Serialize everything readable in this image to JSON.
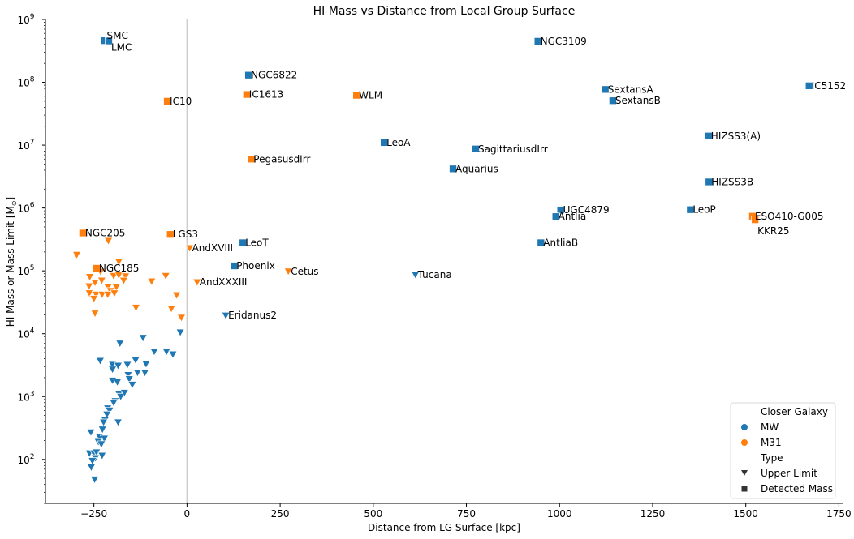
{
  "chart_data": {
    "type": "scatter",
    "title": "HI Mass vs Distance from Local Group Surface",
    "xlabel": "Distance from LG Surface [kpc]",
    "ylabel": "HI Mass or Mass Limit [M",
    "ylabel_sub": "⊙",
    "ylabel_end": "]",
    "xlim": [
      -380,
      1760
    ],
    "ylim": [
      20,
      1000000000
    ],
    "yscale": "log",
    "x_ticks": [
      -250,
      0,
      250,
      500,
      750,
      1000,
      1250,
      1500,
      1750
    ],
    "x_tick_labels": [
      "−250",
      "0",
      "250",
      "500",
      "750",
      "1000",
      "1250",
      "1500",
      "1750"
    ],
    "y_ticks": [
      100,
      1000,
      10000,
      100000,
      1000000,
      10000000,
      100000000,
      1000000000
    ],
    "y_tick_bases": [
      "10",
      "10",
      "10",
      "10",
      "10",
      "10",
      "10",
      "10"
    ],
    "y_tick_exps": [
      "2",
      "3",
      "4",
      "5",
      "6",
      "7",
      "8",
      "9"
    ],
    "vline_x": 0,
    "legend": {
      "position": "lower-right",
      "hue_title": "Closer Galaxy",
      "hue_items": [
        {
          "label": "MW",
          "color": "#1f77b4"
        },
        {
          "label": "M31",
          "color": "#ff7f0e"
        }
      ],
      "style_title": "Type",
      "style_items": [
        {
          "label": "Upper Limit",
          "marker": "triangle-down"
        },
        {
          "label": "Detected Mass",
          "marker": "square"
        }
      ]
    },
    "colors": {
      "MW": "#1f77b4",
      "M31": "#ff7f0e"
    },
    "detected": [
      {
        "name": "SMC",
        "x": -222,
        "y": 460000000,
        "g": "MW"
      },
      {
        "name": "LMC",
        "x": -210,
        "y": 455000000,
        "g": "MW"
      },
      {
        "name": "NGC3109",
        "x": 942,
        "y": 450000000,
        "g": "MW"
      },
      {
        "name": "NGC6822",
        "x": 165,
        "y": 130000000,
        "g": "MW"
      },
      {
        "name": "IC5152",
        "x": 1670,
        "y": 88000000,
        "g": "MW"
      },
      {
        "name": "SextansA",
        "x": 1123,
        "y": 77000000,
        "g": "MW"
      },
      {
        "name": "IC1613",
        "x": 160,
        "y": 64000000,
        "g": "M31"
      },
      {
        "name": "WLM",
        "x": 455,
        "y": 62000000,
        "g": "M31"
      },
      {
        "name": "SextansB",
        "x": 1143,
        "y": 51000000,
        "g": "MW"
      },
      {
        "name": "IC10",
        "x": -53,
        "y": 50000000,
        "g": "M31"
      },
      {
        "name": "HIZSS3(A)",
        "x": 1400,
        "y": 14000000,
        "g": "MW"
      },
      {
        "name": "LeoA",
        "x": 529,
        "y": 11000000,
        "g": "MW"
      },
      {
        "name": "SagittariusdIrr",
        "x": 775,
        "y": 8700000,
        "g": "MW"
      },
      {
        "name": "PegasusdIrr",
        "x": 172,
        "y": 6000000,
        "g": "M31"
      },
      {
        "name": "Aquarius",
        "x": 714,
        "y": 4200000,
        "g": "MW"
      },
      {
        "name": "HIZSS3B",
        "x": 1401,
        "y": 2600000,
        "g": "MW"
      },
      {
        "name": "UGC4879",
        "x": 1003,
        "y": 930000,
        "g": "MW"
      },
      {
        "name": "LeoP",
        "x": 1351,
        "y": 940000,
        "g": "MW"
      },
      {
        "name": "Antlia",
        "x": 990,
        "y": 730000,
        "g": "MW"
      },
      {
        "name": "ESO410-G005",
        "x": 1518,
        "y": 740000,
        "g": "M31"
      },
      {
        "name": "KKR25",
        "x": 1525,
        "y": 650000,
        "g": "M31"
      },
      {
        "name": "NGC205",
        "x": -280,
        "y": 400000,
        "g": "M31"
      },
      {
        "name": "LGS3",
        "x": -45,
        "y": 380000,
        "g": "M31"
      },
      {
        "name": "LeoT",
        "x": 150,
        "y": 280000,
        "g": "MW"
      },
      {
        "name": "AntliaB",
        "x": 950,
        "y": 280000,
        "g": "MW"
      },
      {
        "name": "Phoenix",
        "x": 126,
        "y": 120000,
        "g": "MW"
      },
      {
        "name": "NGC185",
        "x": -243,
        "y": 110000,
        "g": "M31"
      }
    ],
    "upper_limits": [
      {
        "name": "AndXVIII",
        "x": 7,
        "y": 230000,
        "g": "M31"
      },
      {
        "name": "Cetus",
        "x": 272,
        "y": 98000,
        "g": "M31"
      },
      {
        "name": "Tucana",
        "x": 613,
        "y": 87000,
        "g": "MW"
      },
      {
        "name": "AndXXXIII",
        "x": 27,
        "y": 66000,
        "g": "M31"
      },
      {
        "name": "Eridanus2",
        "x": 104,
        "y": 19500,
        "g": "MW"
      },
      {
        "name": "",
        "x": -211,
        "y": 300000,
        "g": "M31"
      },
      {
        "name": "",
        "x": -296,
        "y": 180000,
        "g": "M31"
      },
      {
        "name": "",
        "x": -183,
        "y": 140000,
        "g": "M31"
      },
      {
        "name": "",
        "x": -232,
        "y": 97000,
        "g": "M31"
      },
      {
        "name": "",
        "x": -261,
        "y": 80000,
        "g": "M31"
      },
      {
        "name": "",
        "x": -197,
        "y": 83000,
        "g": "M31"
      },
      {
        "name": "",
        "x": -183,
        "y": 85000,
        "g": "M31"
      },
      {
        "name": "",
        "x": -165,
        "y": 82000,
        "g": "M31"
      },
      {
        "name": "",
        "x": -57,
        "y": 83000,
        "g": "M31"
      },
      {
        "name": "",
        "x": -229,
        "y": 70000,
        "g": "M31"
      },
      {
        "name": "",
        "x": -247,
        "y": 65000,
        "g": "M31"
      },
      {
        "name": "",
        "x": -170,
        "y": 70000,
        "g": "M31"
      },
      {
        "name": "",
        "x": -95,
        "y": 68000,
        "g": "M31"
      },
      {
        "name": "",
        "x": -263,
        "y": 57000,
        "g": "M31"
      },
      {
        "name": "",
        "x": -212,
        "y": 55000,
        "g": "M31"
      },
      {
        "name": "",
        "x": -190,
        "y": 55000,
        "g": "M31"
      },
      {
        "name": "",
        "x": -205,
        "y": 48000,
        "g": "M31"
      },
      {
        "name": "",
        "x": -262,
        "y": 44000,
        "g": "M31"
      },
      {
        "name": "",
        "x": -244,
        "y": 42000,
        "g": "M31"
      },
      {
        "name": "",
        "x": -228,
        "y": 42000,
        "g": "M31"
      },
      {
        "name": "",
        "x": -213,
        "y": 42000,
        "g": "M31"
      },
      {
        "name": "",
        "x": -195,
        "y": 44000,
        "g": "M31"
      },
      {
        "name": "",
        "x": -28,
        "y": 41000,
        "g": "M31"
      },
      {
        "name": "",
        "x": -250,
        "y": 36000,
        "g": "M31"
      },
      {
        "name": "",
        "x": -137,
        "y": 26000,
        "g": "M31"
      },
      {
        "name": "",
        "x": -42,
        "y": 25000,
        "g": "M31"
      },
      {
        "name": "",
        "x": -247,
        "y": 21000,
        "g": "M31"
      },
      {
        "name": "",
        "x": -15,
        "y": 18000,
        "g": "M31"
      },
      {
        "name": "",
        "x": -18,
        "y": 10500,
        "g": "MW"
      },
      {
        "name": "",
        "x": -118,
        "y": 8600,
        "g": "MW"
      },
      {
        "name": "",
        "x": -180,
        "y": 7000,
        "g": "MW"
      },
      {
        "name": "",
        "x": -88,
        "y": 5200,
        "g": "MW"
      },
      {
        "name": "",
        "x": -55,
        "y": 5200,
        "g": "MW"
      },
      {
        "name": "",
        "x": -38,
        "y": 4700,
        "g": "MW"
      },
      {
        "name": "",
        "x": -233,
        "y": 3700,
        "g": "MW"
      },
      {
        "name": "",
        "x": -138,
        "y": 3800,
        "g": "MW"
      },
      {
        "name": "",
        "x": -200,
        "y": 3200,
        "g": "MW"
      },
      {
        "name": "",
        "x": -185,
        "y": 3100,
        "g": "MW"
      },
      {
        "name": "",
        "x": -160,
        "y": 3200,
        "g": "MW"
      },
      {
        "name": "",
        "x": -110,
        "y": 3300,
        "g": "MW"
      },
      {
        "name": "",
        "x": -200,
        "y": 2700,
        "g": "MW"
      },
      {
        "name": "",
        "x": -158,
        "y": 2200,
        "g": "MW"
      },
      {
        "name": "",
        "x": -133,
        "y": 2400,
        "g": "MW"
      },
      {
        "name": "",
        "x": -113,
        "y": 2400,
        "g": "MW"
      },
      {
        "name": "",
        "x": -155,
        "y": 1900,
        "g": "MW"
      },
      {
        "name": "",
        "x": -200,
        "y": 1800,
        "g": "MW"
      },
      {
        "name": "",
        "x": -187,
        "y": 1700,
        "g": "MW"
      },
      {
        "name": "",
        "x": -147,
        "y": 1550,
        "g": "MW"
      },
      {
        "name": "",
        "x": -183,
        "y": 1100,
        "g": "MW"
      },
      {
        "name": "",
        "x": -178,
        "y": 1000,
        "g": "MW"
      },
      {
        "name": "",
        "x": -168,
        "y": 1150,
        "g": "MW"
      },
      {
        "name": "",
        "x": -193,
        "y": 850,
        "g": "MW"
      },
      {
        "name": "",
        "x": -197,
        "y": 800,
        "g": "MW"
      },
      {
        "name": "",
        "x": -213,
        "y": 650,
        "g": "MW"
      },
      {
        "name": "",
        "x": -208,
        "y": 600,
        "g": "MW"
      },
      {
        "name": "",
        "x": -215,
        "y": 520,
        "g": "MW"
      },
      {
        "name": "",
        "x": -220,
        "y": 420,
        "g": "MW"
      },
      {
        "name": "",
        "x": -224,
        "y": 390,
        "g": "MW"
      },
      {
        "name": "",
        "x": -185,
        "y": 390,
        "g": "MW"
      },
      {
        "name": "",
        "x": -227,
        "y": 300,
        "g": "MW"
      },
      {
        "name": "",
        "x": -258,
        "y": 270,
        "g": "MW"
      },
      {
        "name": "",
        "x": -235,
        "y": 230,
        "g": "MW"
      },
      {
        "name": "",
        "x": -222,
        "y": 215,
        "g": "MW"
      },
      {
        "name": "",
        "x": -238,
        "y": 190,
        "g": "MW"
      },
      {
        "name": "",
        "x": -230,
        "y": 175,
        "g": "MW"
      },
      {
        "name": "",
        "x": -262,
        "y": 125,
        "g": "MW"
      },
      {
        "name": "",
        "x": -250,
        "y": 125,
        "g": "MW"
      },
      {
        "name": "",
        "x": -243,
        "y": 130,
        "g": "MW"
      },
      {
        "name": "",
        "x": -228,
        "y": 115,
        "g": "MW"
      },
      {
        "name": "",
        "x": -246,
        "y": 105,
        "g": "MW"
      },
      {
        "name": "",
        "x": -254,
        "y": 95,
        "g": "MW"
      },
      {
        "name": "",
        "x": -257,
        "y": 75,
        "g": "MW"
      },
      {
        "name": "",
        "x": -248,
        "y": 48,
        "g": "MW"
      }
    ]
  }
}
